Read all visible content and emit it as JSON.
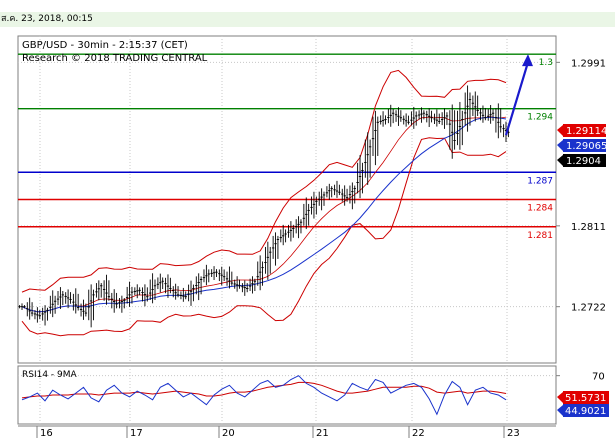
{
  "header": {
    "timestamp": "ส.ค. 23, 2018, 00:15"
  },
  "chart_data": {
    "type": "candlestick",
    "title": "GBP/USD - 30min - 2:15:37 (CET)",
    "subtitle": "Research © 2018 TRADING CENTRAL",
    "price_axis": {
      "ylim": [
        1.266,
        1.302
      ],
      "tick_labels": [
        {
          "value": 1.2991,
          "label": "1.2991"
        },
        {
          "value": 1.2811,
          "label": "1.2811"
        },
        {
          "value": 1.2722,
          "label": "1.2722"
        }
      ]
    },
    "x_tick_labels": [
      "16",
      "17",
      "20",
      "21",
      "22",
      "23"
    ],
    "levels": [
      {
        "value": 1.3,
        "label": "1.3",
        "color": "#008000"
      },
      {
        "value": 1.294,
        "label": "1.294",
        "color": "#008000"
      },
      {
        "value": 1.287,
        "label": "1.287",
        "color": "#0000cc"
      },
      {
        "value": 1.284,
        "label": "1.284",
        "color": "#e00000"
      },
      {
        "value": 1.281,
        "label": "1.281",
        "color": "#e00000"
      }
    ],
    "price_markers": [
      {
        "value": 1.29114,
        "label": "1.29114",
        "bg": "#e00000",
        "fg": "#ffffff"
      },
      {
        "value": 1.29065,
        "label": "1.29065",
        "bg": "#1a33cc",
        "fg": "#ffffff"
      },
      {
        "value": 1.2904,
        "label": "1.2904",
        "bg": "#000000",
        "fg": "#ffffff"
      }
    ],
    "price_series": [
      1.2722,
      1.2715,
      1.2712,
      1.2718,
      1.2728,
      1.2735,
      1.273,
      1.2721,
      1.2715,
      1.2735,
      1.2745,
      1.2733,
      1.2725,
      1.2729,
      1.2738,
      1.274,
      1.2733,
      1.2745,
      1.275,
      1.2742,
      1.2735,
      1.2733,
      1.2742,
      1.2752,
      1.2758,
      1.276,
      1.2755,
      1.2748,
      1.2745,
      1.2742,
      1.275,
      1.2765,
      1.2782,
      1.2796,
      1.2802,
      1.2808,
      1.2815,
      1.2828,
      1.2838,
      1.2845,
      1.2852,
      1.2848,
      1.2842,
      1.2852,
      1.2872,
      1.2898,
      1.2925,
      1.2928,
      1.2935,
      1.293,
      1.2925,
      1.2932,
      1.2935,
      1.293,
      1.2926,
      1.2932,
      1.2905,
      1.2928,
      1.295,
      1.2938,
      1.293,
      1.2935,
      1.292,
      1.2914
    ],
    "forecast": {
      "from": 1.2911,
      "to": 1.3
    },
    "rsi": {
      "label": "RSI14 - 9MA",
      "ylim": [
        20,
        80
      ],
      "tick_labels": [
        {
          "value": 70,
          "label": "70"
        }
      ],
      "markers": [
        {
          "value": 51.5731,
          "label": "51.5731",
          "bg": "#e00000",
          "fg": "#ffffff"
        },
        {
          "value": 44.9021,
          "label": "44.9021",
          "bg": "#1a33cc",
          "fg": "#ffffff"
        }
      ],
      "rsi_series": [
        45,
        48,
        52,
        44,
        55,
        50,
        46,
        52,
        58,
        47,
        43,
        55,
        60,
        52,
        48,
        54,
        50,
        45,
        58,
        62,
        55,
        48,
        52,
        46,
        40,
        50,
        56,
        60,
        52,
        48,
        55,
        62,
        65,
        58,
        60,
        66,
        70,
        62,
        58,
        52,
        48,
        44,
        50,
        62,
        58,
        55,
        66,
        63,
        52,
        56,
        60,
        62,
        58,
        46,
        30,
        50,
        64,
        58,
        40,
        55,
        58,
        52,
        50,
        45
      ],
      "ma_series": [
        47,
        48,
        49,
        49,
        50,
        50,
        50,
        51,
        51,
        51,
        50,
        51,
        52,
        52,
        52,
        53,
        52,
        51,
        52,
        53,
        54,
        53,
        52,
        51,
        49,
        49,
        50,
        52,
        53,
        53,
        54,
        56,
        58,
        59,
        60,
        61,
        63,
        63,
        62,
        60,
        57,
        54,
        52,
        52,
        53,
        54,
        56,
        58,
        58,
        58,
        58,
        59,
        59,
        57,
        53,
        52,
        53,
        54,
        52,
        53,
        54,
        54,
        53,
        51.6
      ]
    }
  }
}
